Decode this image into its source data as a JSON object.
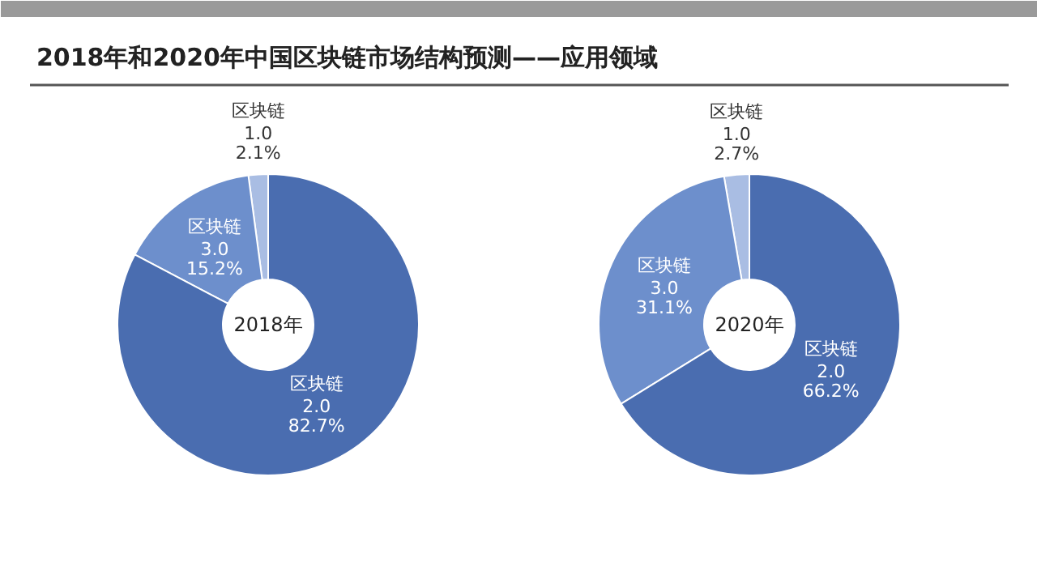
{
  "chart_data": [
    {
      "type": "donut",
      "title": "2018年和2020年中国区块链市场结构预测——应用领域",
      "annotations": [
        "2018年"
      ],
      "categories": [
        "区块链 1.0",
        "区块链 3.0",
        "区块链 2.0"
      ],
      "values": [
        2.1,
        15.2,
        82.7
      ],
      "value_labels": [
        "2.1%",
        "15.2%",
        "82.7%"
      ],
      "colors": [
        "#a9bde3",
        "#6d8fcc",
        "#4a6db0"
      ]
    },
    {
      "type": "donut",
      "annotations": [
        "2020年"
      ],
      "categories": [
        "区块链 1.0",
        "区块链 3.0",
        "区块链 2.0"
      ],
      "values": [
        2.7,
        31.1,
        66.2
      ],
      "value_labels": [
        "2.7%",
        "31.1%",
        "66.2%"
      ],
      "colors": [
        "#a9bde3",
        "#6d8fcc",
        "#4a6db0"
      ]
    }
  ]
}
